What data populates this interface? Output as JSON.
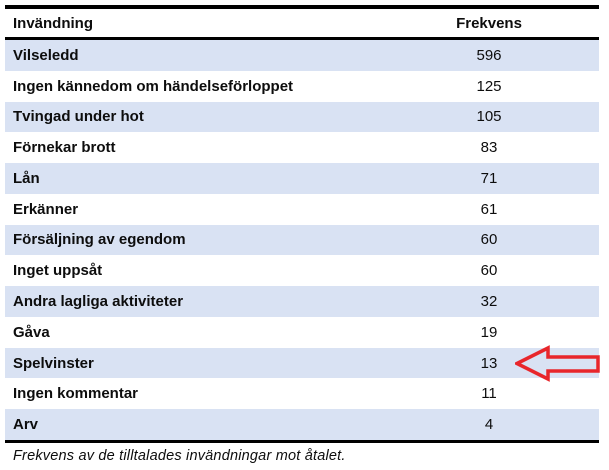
{
  "table": {
    "columns": [
      {
        "label": "Invändning"
      },
      {
        "label": "Frekvens"
      }
    ],
    "rows": [
      {
        "objection": "Vilseledd",
        "frequency": "596"
      },
      {
        "objection": "Ingen kännedom om händelseförloppet",
        "frequency": "125"
      },
      {
        "objection": "Tvingad under hot",
        "frequency": "105"
      },
      {
        "objection": "Förnekar brott",
        "frequency": "83"
      },
      {
        "objection": "Lån",
        "frequency": "71"
      },
      {
        "objection": "Erkänner",
        "frequency": "61"
      },
      {
        "objection": "Försäljning av egendom",
        "frequency": "60"
      },
      {
        "objection": "Inget uppsåt",
        "frequency": "60"
      },
      {
        "objection": "Andra lagliga aktiviteter",
        "frequency": "32"
      },
      {
        "objection": "Gåva",
        "frequency": "19"
      },
      {
        "objection": "Spelvinster",
        "frequency": "13"
      },
      {
        "objection": "Ingen kommentar",
        "frequency": "11"
      },
      {
        "objection": "Arv",
        "frequency": "4"
      }
    ]
  },
  "caption": "Frekvens av de tilltalades invändningar mot åtalet.",
  "annotation": {
    "type": "left-block-arrow",
    "points_to": "Spelvinster",
    "color": "#E8262B"
  },
  "colors": {
    "row_band": "#D9E2F3",
    "border": "#000000",
    "text": "#0d0d0d",
    "background": "#ffffff"
  }
}
